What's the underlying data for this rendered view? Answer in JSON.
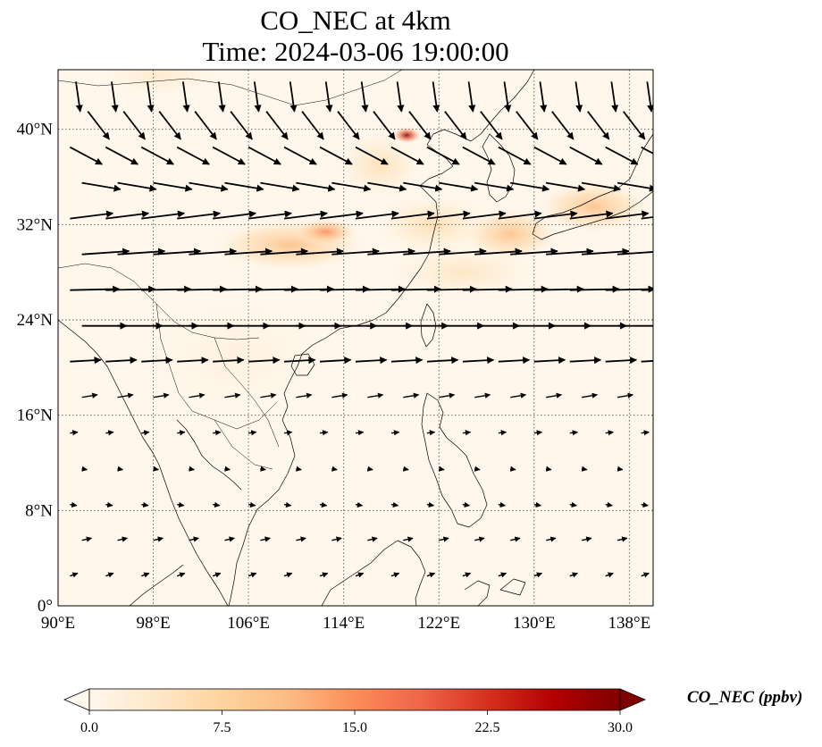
{
  "header": {
    "title_line1": "CO_NEC at 4km",
    "title_line2": "Time: 2024-03-06 19:00:00"
  },
  "map": {
    "projection": "PlateCarree",
    "extent": {
      "lon_min": 90,
      "lon_max": 140,
      "lat_min": 0,
      "lat_max": 45
    },
    "lon_ticks": [
      {
        "value": 90,
        "label": "90°E"
      },
      {
        "value": 98,
        "label": "98°E"
      },
      {
        "value": 106,
        "label": "106°E"
      },
      {
        "value": 114,
        "label": "114°E"
      },
      {
        "value": 122,
        "label": "122°E"
      },
      {
        "value": 130,
        "label": "130°E"
      },
      {
        "value": 138,
        "label": "138°E"
      }
    ],
    "lat_ticks": [
      {
        "value": 0,
        "label": "0°"
      },
      {
        "value": 8,
        "label": "8°N"
      },
      {
        "value": 16,
        "label": "16°N"
      },
      {
        "value": 24,
        "label": "24°N"
      },
      {
        "value": 32,
        "label": "32°N"
      },
      {
        "value": 40,
        "label": "40°N"
      }
    ],
    "gridlines": true,
    "background_color": "#fff7ec",
    "coastline_color": "#000000",
    "field_highlights": [
      {
        "lon": 119.3,
        "lat": 39.5,
        "intensity": 0.95,
        "rx": 1.0,
        "ry": 0.5
      },
      {
        "lon": 109.5,
        "lat": 30.3,
        "intensity": 0.35,
        "rx": 5.5,
        "ry": 1.6
      },
      {
        "lon": 112.5,
        "lat": 31.4,
        "intensity": 0.5,
        "rx": 2.2,
        "ry": 0.8
      },
      {
        "lon": 128.0,
        "lat": 31.2,
        "intensity": 0.35,
        "rx": 3.5,
        "ry": 1.6
      },
      {
        "lon": 135.0,
        "lat": 33.5,
        "intensity": 0.35,
        "rx": 4.0,
        "ry": 1.6
      },
      {
        "lon": 121.5,
        "lat": 32.0,
        "intensity": 0.2,
        "rx": 4.0,
        "ry": 1.8
      },
      {
        "lon": 117.0,
        "lat": 37.0,
        "intensity": 0.18,
        "rx": 3.0,
        "ry": 2.0
      },
      {
        "lon": 124.0,
        "lat": 28.0,
        "intensity": 0.15,
        "rx": 5.0,
        "ry": 1.6
      },
      {
        "lon": 98.5,
        "lat": 44.5,
        "intensity": 0.12,
        "rx": 4.0,
        "ry": 1.2
      },
      {
        "lon": 105.0,
        "lat": 21.0,
        "intensity": 0.06,
        "rx": 6.0,
        "ry": 3.0
      }
    ],
    "wind_rows": [
      {
        "lat": 44.0,
        "lon_start": 91.5,
        "lon_step": 3.0,
        "u": 0.2,
        "v": -1.4,
        "length": 1.0
      },
      {
        "lat": 41.5,
        "lon_start": 92.5,
        "lon_step": 3.0,
        "u": 1.0,
        "v": -1.3,
        "length": 1.0
      },
      {
        "lat": 38.5,
        "lon_start": 91.0,
        "lon_step": 3.0,
        "u": 1.5,
        "v": -0.8,
        "length": 1.0
      },
      {
        "lat": 35.5,
        "lon_start": 92.0,
        "lon_step": 3.0,
        "u": 1.8,
        "v": -0.3,
        "length": 1.0
      },
      {
        "lat": 32.5,
        "lon_start": 91.0,
        "lon_step": 3.0,
        "u": 2.0,
        "v": 0.25,
        "length": 1.0
      },
      {
        "lat": 29.5,
        "lon_start": 92.0,
        "lon_step": 3.0,
        "u": 2.2,
        "v": 0.15,
        "length": 1.0
      },
      {
        "lat": 26.5,
        "lon_start": 91.0,
        "lon_step": 3.0,
        "u": 2.3,
        "v": 0.05,
        "length": 1.0
      },
      {
        "lat": 23.5,
        "lon_start": 92.0,
        "lon_step": 3.0,
        "u": 2.2,
        "v": 0.0,
        "length": 0.95
      },
      {
        "lat": 20.5,
        "lon_start": 91.0,
        "lon_step": 3.0,
        "u": 1.8,
        "v": 0.1,
        "length": 0.8
      },
      {
        "lat": 17.5,
        "lon_start": 92.0,
        "lon_step": 3.0,
        "u": 1.2,
        "v": 0.2,
        "length": 0.6
      },
      {
        "lat": 14.5,
        "lon_start": 91.0,
        "lon_step": 3.0,
        "u": 0.8,
        "v": 0.1,
        "length": 0.45
      },
      {
        "lat": 11.5,
        "lon_start": 92.0,
        "lon_step": 3.0,
        "u": 0.6,
        "v": -0.1,
        "length": 0.4
      },
      {
        "lat": 8.5,
        "lon_start": 91.0,
        "lon_step": 3.0,
        "u": 0.7,
        "v": -0.1,
        "length": 0.45
      },
      {
        "lat": 5.5,
        "lon_start": 92.0,
        "lon_step": 3.0,
        "u": 0.9,
        "v": 0.2,
        "length": 0.5
      },
      {
        "lat": 2.5,
        "lon_start": 91.0,
        "lon_step": 3.0,
        "u": 0.8,
        "v": 0.3,
        "length": 0.45
      }
    ]
  },
  "colorbar": {
    "label": "CO_NEC (ppbv)",
    "min": 0.0,
    "max": 30.0,
    "extend": "both",
    "ticks": [
      {
        "value": 0.0,
        "label": "0.0"
      },
      {
        "value": 7.5,
        "label": "7.5"
      },
      {
        "value": 15.0,
        "label": "15.0"
      },
      {
        "value": 22.5,
        "label": "22.5"
      },
      {
        "value": 30.0,
        "label": "30.0"
      }
    ],
    "colors": [
      "#fff7ec",
      "#fee8c8",
      "#fdd49e",
      "#fdbb84",
      "#fc8d59",
      "#ef6548",
      "#d7301f",
      "#b30000",
      "#7f0000"
    ]
  }
}
